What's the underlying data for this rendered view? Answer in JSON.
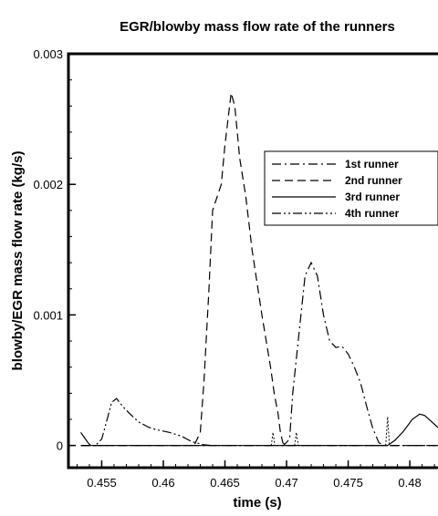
{
  "chart_data": {
    "type": "line",
    "title": "EGR/blowby mass flow rate of the runners",
    "xlabel": "time (s)",
    "ylabel": "blowby/EGR mass flow rate (kg/s)",
    "xlim": [
      0.4523,
      0.4834
    ],
    "ylim": [
      -0.00017,
      0.003
    ],
    "xticks": [
      0.455,
      0.46,
      0.465,
      0.47,
      0.475,
      0.48
    ],
    "xtick_labels": [
      "0.455",
      "0.46",
      "0.465",
      "0.47",
      "0.475",
      "0.48"
    ],
    "yticks": [
      0,
      0.001,
      0.002,
      0.003
    ],
    "ytick_labels": [
      "0",
      "0.001",
      "0.002",
      "0.003"
    ],
    "grid": false,
    "legend_position": "right",
    "series": [
      {
        "name": "1st runner",
        "dash": "dashdot",
        "x": [
          0.4533,
          0.46975,
          0.47025,
          0.4705,
          0.4715,
          0.472,
          0.4725,
          0.473,
          0.4735,
          0.474,
          0.4745,
          0.475,
          0.4755,
          0.476,
          0.4765,
          0.477,
          0.4775,
          0.478,
          0.4834
        ],
        "y": [
          0,
          0,
          5e-05,
          0.0004,
          0.0013,
          0.0014,
          0.0013,
          0.001,
          0.0008,
          0.00075,
          0.00076,
          0.0007,
          0.0006,
          0.00048,
          0.0003,
          0.00013,
          2e-05,
          0,
          0
        ]
      },
      {
        "name": "2nd runner",
        "dash": "dash",
        "x": [
          0.4533,
          0.4625,
          0.463,
          0.4633,
          0.4637,
          0.464,
          0.4647,
          0.465,
          0.4655,
          0.4658,
          0.4662,
          0.4667,
          0.4672,
          0.468,
          0.4687,
          0.469,
          0.4693,
          0.4695,
          0.4697,
          0.47,
          0.4834
        ],
        "y": [
          0,
          0,
          0.0001,
          0.0005,
          0.0012,
          0.0018,
          0.002,
          0.0023,
          0.0027,
          0.0026,
          0.0022,
          0.0019,
          0.0015,
          0.001,
          0.0006,
          0.0004,
          0.00025,
          0.0001,
          2e-05,
          0,
          0
        ]
      },
      {
        "name": "3rd runner",
        "dash": "solid",
        "x": [
          0.4533,
          0.4782,
          0.4788,
          0.4795,
          0.4802,
          0.4808,
          0.4812,
          0.4818,
          0.4825,
          0.4834
        ],
        "y": [
          0,
          0,
          4e-05,
          0.00011,
          0.0002,
          0.00024,
          0.00023,
          0.00018,
          0.00012,
          0.0001
        ],
        "extra_segment": {
          "x": [
            0.4533,
            0.4536,
            0.4539,
            0.4541
          ],
          "y": [
            0.0001,
            6e-05,
            2e-05,
            0
          ]
        }
      },
      {
        "name": "4th runner",
        "dash": "dashdotdot",
        "x": [
          0.4533,
          0.4545,
          0.455,
          0.4555,
          0.4558,
          0.4562,
          0.4567,
          0.4572,
          0.458,
          0.4588,
          0.4595,
          0.4605,
          0.4615,
          0.4623,
          0.4633,
          0.464,
          0.4834
        ],
        "y": [
          0,
          0,
          5e-05,
          0.00022,
          0.00033,
          0.00036,
          0.0003,
          0.00025,
          0.00018,
          0.00014,
          0.00012,
          0.0001,
          7e-05,
          3e-05,
          5e-06,
          0,
          0
        ]
      }
    ],
    "spikes": [
      {
        "x": 0.4689,
        "y": 0.0001
      },
      {
        "x": 0.4708,
        "y": 0.0001
      },
      {
        "x": 0.4782,
        "y": 0.00022
      }
    ]
  }
}
